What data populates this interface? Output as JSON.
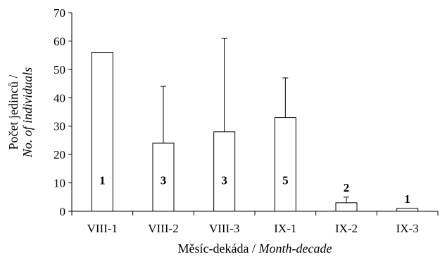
{
  "chart_data": {
    "type": "bar",
    "categories": [
      "VIII-1",
      "VIII-2",
      "VIII-3",
      "IX-1",
      "IX-2",
      "IX-3"
    ],
    "values": [
      56,
      24,
      28,
      33,
      3,
      1
    ],
    "error_upper": [
      56,
      44,
      61,
      47,
      5,
      1
    ],
    "sample_sizes": [
      "1",
      "3",
      "3",
      "5",
      "2",
      "1"
    ],
    "ylim": [
      0,
      70
    ],
    "yticks": [
      0,
      10,
      20,
      30,
      40,
      50,
      60,
      70
    ],
    "ylabel": {
      "line1": "Počet jedinců /",
      "line2": "No. of individuals"
    },
    "xlabel": {
      "plain": "Měsíc-dekáda / ",
      "italic": "Month-decade"
    },
    "bar_fill": "#ffffff",
    "bar_stroke": "#000000",
    "grid": false,
    "legend": "none"
  }
}
